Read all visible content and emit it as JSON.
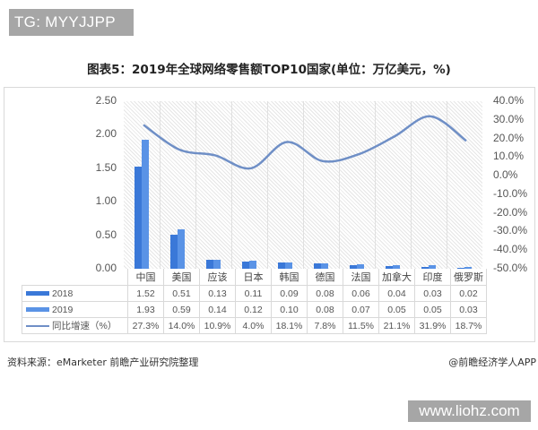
{
  "watermarks": {
    "top_label": "TG: MYYJJPP",
    "bottom_label": "www.liohz.com"
  },
  "title": "图表5：2019年全球网络零售额TOP10国家(单位：万亿美元，%)",
  "axes": {
    "left_ticks": [
      "2.50",
      "2.00",
      "1.50",
      "1.00",
      "0.50",
      "0.00"
    ],
    "right_ticks": [
      "40.0%",
      "30.0%",
      "20.0%",
      "10.0%",
      "0.0%",
      "-10.0%",
      "-20.0%",
      "-30.0%",
      "-40.0%",
      "-50.0%"
    ]
  },
  "table": {
    "categories": [
      "中国",
      "美国",
      "应该",
      "日本",
      "韩国",
      "德国",
      "法国",
      "加拿大",
      "印度",
      "俄罗斯"
    ],
    "rows": [
      {
        "label": "2018",
        "values": [
          "1.52",
          "0.51",
          "0.13",
          "0.11",
          "0.09",
          "0.08",
          "0.06",
          "0.04",
          "0.03",
          "0.02"
        ]
      },
      {
        "label": "2019",
        "values": [
          "1.93",
          "0.59",
          "0.14",
          "0.12",
          "0.10",
          "0.08",
          "0.07",
          "0.05",
          "0.05",
          "0.03"
        ]
      },
      {
        "label": "同比增速（%）",
        "values": [
          "27.3%",
          "14.0%",
          "10.9%",
          "4.0%",
          "18.1%",
          "7.8%",
          "11.5%",
          "21.1%",
          "31.9%",
          "18.7%"
        ]
      }
    ]
  },
  "footer": {
    "source": "资料来源：eMarketer 前瞻产业研究院整理",
    "credit": "@前瞻经济学人APP"
  },
  "colors": {
    "bar_2018": "#3a78d8",
    "bar_2019": "#5a93e6",
    "line_growth": "#6f8fc6"
  },
  "chart_data": {
    "type": "bar",
    "title": "图表5：2019年全球网络零售额TOP10国家(单位：万亿美元，%)",
    "categories": [
      "中国",
      "美国",
      "应该",
      "日本",
      "韩国",
      "德国",
      "法国",
      "加拿大",
      "印度",
      "俄罗斯"
    ],
    "series": [
      {
        "name": "2018",
        "type": "bar",
        "axis": "left",
        "values": [
          1.52,
          0.51,
          0.13,
          0.11,
          0.09,
          0.08,
          0.06,
          0.04,
          0.03,
          0.02
        ]
      },
      {
        "name": "2019",
        "type": "bar",
        "axis": "left",
        "values": [
          1.93,
          0.59,
          0.14,
          0.12,
          0.1,
          0.08,
          0.07,
          0.05,
          0.05,
          0.03
        ]
      },
      {
        "name": "同比增速（%）",
        "type": "line",
        "axis": "right",
        "values": [
          27.3,
          14.0,
          10.9,
          4.0,
          18.1,
          7.8,
          11.5,
          21.1,
          31.9,
          18.7
        ]
      }
    ],
    "xlabel": "",
    "ylabel": "万亿美元",
    "ylim": [
      0,
      2.5
    ],
    "y2lim": [
      -50,
      40
    ],
    "y2label": "%",
    "legend_position": "data table below chart",
    "grid": false,
    "source": "资料来源：eMarketer 前瞻产业研究院整理"
  }
}
